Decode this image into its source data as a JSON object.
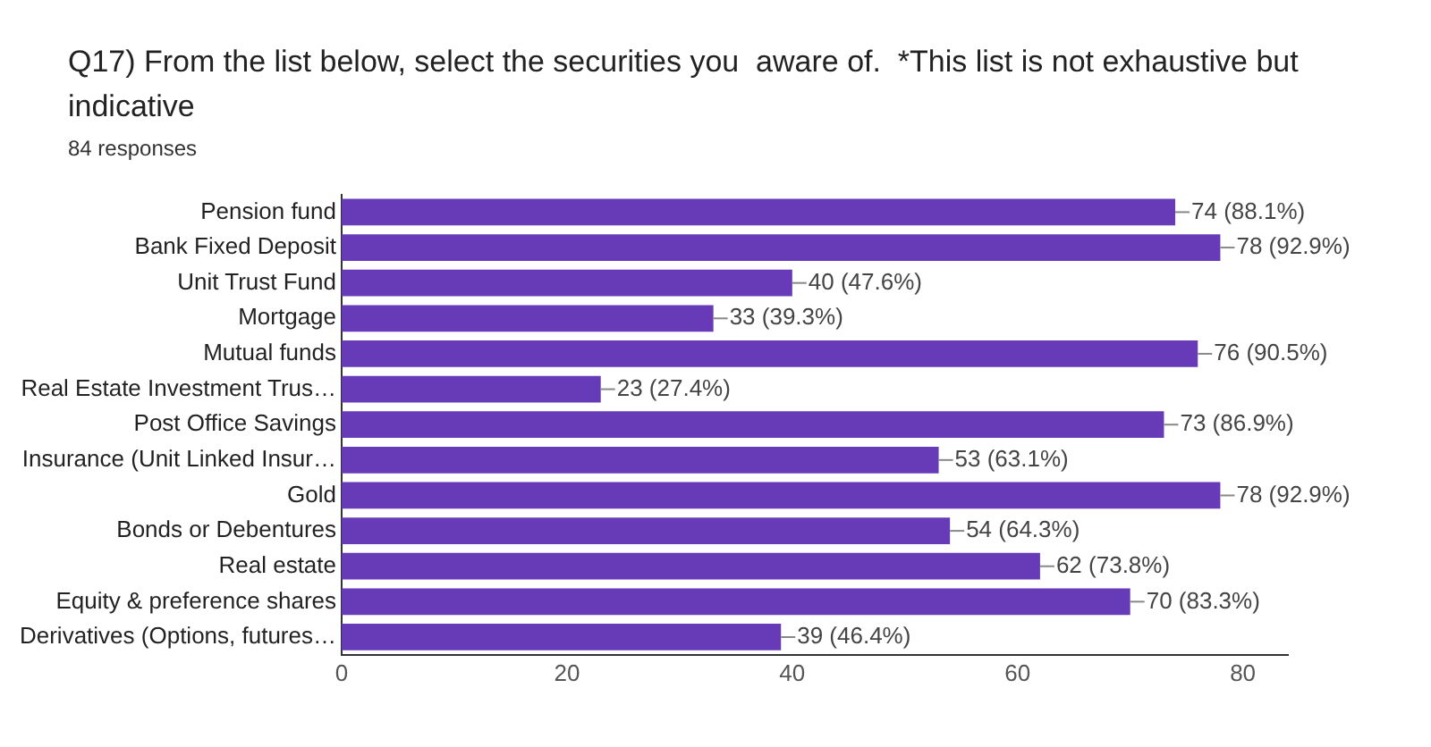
{
  "chart_data": {
    "type": "bar",
    "orientation": "horizontal",
    "title": "Q17) From the list below, select the securities you  aware of.  *This list is not exhaustive but indicative",
    "subtitle": "84 responses",
    "categories": [
      "Pension fund",
      "Bank Fixed Deposit",
      "Unit Trust Fund",
      "Mortgage",
      "Mutual funds",
      "Real Estate Investment Trus…",
      "Post Office Savings",
      "Insurance (Unit Linked Insur…",
      "Gold",
      "Bonds or Debentures",
      "Real estate",
      "Equity & preference shares",
      "Derivatives (Options, futures…"
    ],
    "values": [
      74,
      78,
      40,
      33,
      76,
      23,
      73,
      53,
      78,
      54,
      62,
      70,
      39
    ],
    "value_labels": [
      "74 (88.1%)",
      "78 (92.9%)",
      "40 (47.6%)",
      "33 (39.3%)",
      "76 (90.5%)",
      "23 (27.4%)",
      "73 (86.9%)",
      "53 (63.1%)",
      "78 (92.9%)",
      "54 (64.3%)",
      "62 (73.8%)",
      "70 (83.3%)",
      "39 (46.4%)"
    ],
    "color": "#673ab7",
    "xlim": [
      0,
      84
    ],
    "xticks": [
      0,
      20,
      40,
      60,
      80
    ],
    "grid": false,
    "legend": false
  }
}
